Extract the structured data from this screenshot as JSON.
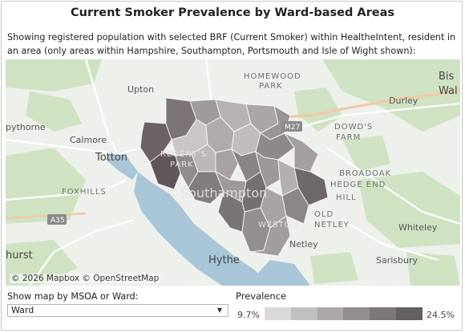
{
  "title": "Current Smoker Prevalence by Ward-based Areas",
  "subtitle": "Showing registered population with selected BRF (Current Smoker) within HealtheIntent, resident in an area (only areas within Hampshire, Southampton, Portsmouth and Isle of Wight shown):",
  "map": {
    "attribution": "© 2026 Mapbox © OpenStreetMap",
    "place_labels": {
      "homewood_park": [
        "HOMEWOOD",
        "PARK"
      ],
      "upton": "Upton",
      "durley": "Durley",
      "bishops_waltham": [
        "Bis",
        "Wal"
      ],
      "opthorne": "pythorne",
      "calmore": "Calmore",
      "dowds_farm": [
        "DOWD'S",
        "FARM"
      ],
      "totton": "Totton",
      "regents_park": [
        "REGENT'S",
        "PARK"
      ],
      "broadoak": "BROADOAK",
      "hedge_end": "HEDGE END",
      "foxhills": "FOXHILLS",
      "southampton": "Southampton",
      "hill": "HILL",
      "old_netley": [
        "OLD",
        "NETLEY"
      ],
      "weston": "WESTON",
      "whiteley": "Whiteley",
      "netley": "Netley",
      "hythe": "Hythe",
      "sarisbury": "Sarisbury",
      "hurst": "hurst",
      "road_m27": "M27",
      "road_a35": "A35"
    },
    "colors": {
      "base": "#eef0ec",
      "water": "#a9c6d8",
      "green": "#cfe3c3",
      "road": "#ffffff",
      "motorway": "#f2c9a3"
    }
  },
  "controls": {
    "show_map_label": "Show map by MSOA or Ward:",
    "selected": "Ward",
    "arrow": "▼"
  },
  "legend": {
    "title": "Prevalence",
    "min": "9.7%",
    "max": "24.5%",
    "ramp_colors": [
      "#dcd8d8",
      "#c4bfbf",
      "#ada7a7",
      "#958e8e",
      "#7d7676",
      "#665f5f"
    ]
  }
}
